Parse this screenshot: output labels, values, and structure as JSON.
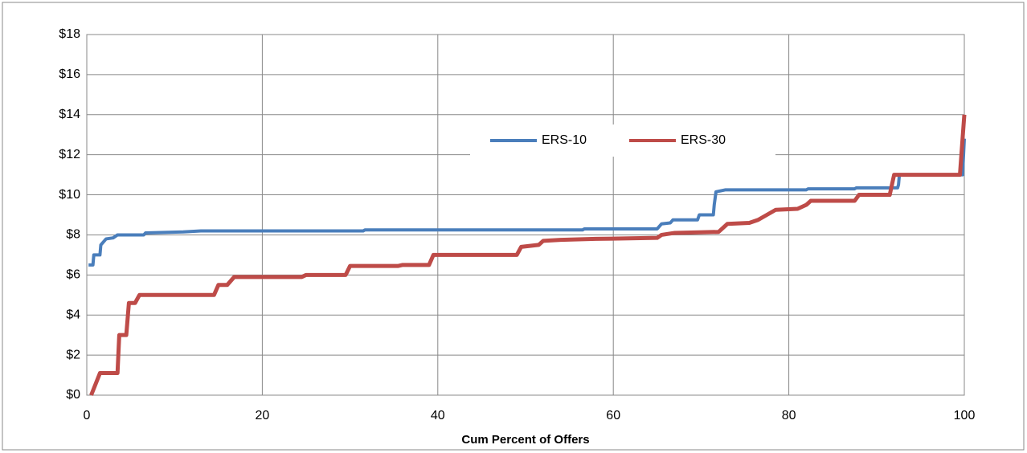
{
  "chart_data": {
    "type": "line",
    "xlabel": "Cum Percent of Offers",
    "xlim": [
      0,
      100
    ],
    "xticks": [
      0,
      20,
      40,
      60,
      80,
      100
    ],
    "ylim": [
      0,
      18
    ],
    "yticks": [
      {
        "value": 0,
        "label": "$0"
      },
      {
        "value": 2,
        "label": "$2"
      },
      {
        "value": 4,
        "label": "$4"
      },
      {
        "value": 6,
        "label": "$6"
      },
      {
        "value": 8,
        "label": "$8"
      },
      {
        "value": 10,
        "label": "$10"
      },
      {
        "value": 12,
        "label": "$12"
      },
      {
        "value": 14,
        "label": "$14"
      },
      {
        "value": 16,
        "label": "$16"
      },
      {
        "value": 18,
        "label": "$18"
      }
    ],
    "grid": true,
    "legend": "inside-top",
    "series": [
      {
        "name": "ERS-10",
        "color": "#4a7ebb",
        "x": [
          0.2,
          0.7,
          0.8,
          1.5,
          1.6,
          2.0,
          2.2,
          3.0,
          3.5,
          6.5,
          6.7,
          11,
          13,
          31.5,
          31.7,
          56.5,
          56.7,
          65,
          65.5,
          66.5,
          66.8,
          69.6,
          69.8,
          71.4,
          71.5,
          71.7,
          72.8,
          82,
          82.2,
          87.5,
          87.7,
          92.4,
          92.5,
          92.6,
          99.8,
          100
        ],
        "values": [
          6.5,
          6.5,
          7.0,
          7.0,
          7.5,
          7.7,
          7.8,
          7.85,
          8.0,
          8.0,
          8.1,
          8.15,
          8.2,
          8.2,
          8.25,
          8.25,
          8.3,
          8.3,
          8.55,
          8.6,
          8.75,
          8.75,
          9.0,
          9.0,
          9.5,
          10.15,
          10.25,
          10.25,
          10.3,
          10.3,
          10.35,
          10.35,
          10.5,
          11.0,
          11.0,
          12.8
        ]
      },
      {
        "name": "ERS-30",
        "color": "#be4b48",
        "x": [
          0.5,
          1.5,
          3.5,
          3.7,
          4.5,
          4.8,
          5.5,
          6.0,
          14.5,
          15,
          16,
          16.8,
          24.5,
          25,
          29.5,
          30,
          35.5,
          36,
          39,
          39.5,
          49,
          49.5,
          51.5,
          52,
          54,
          58,
          65,
          65.5,
          67,
          72,
          73,
          75.5,
          76.5,
          77.5,
          78.5,
          81,
          82,
          82.5,
          87.5,
          88,
          91.5,
          92,
          99.5,
          100
        ],
        "values": [
          0,
          1.1,
          1.1,
          3.0,
          3.0,
          4.6,
          4.6,
          5.0,
          5.0,
          5.5,
          5.5,
          5.9,
          5.9,
          6.0,
          6.0,
          6.45,
          6.45,
          6.5,
          6.5,
          7.0,
          7.0,
          7.4,
          7.5,
          7.7,
          7.75,
          7.8,
          7.85,
          8.0,
          8.1,
          8.15,
          8.55,
          8.6,
          8.75,
          9.0,
          9.25,
          9.3,
          9.5,
          9.7,
          9.7,
          10.0,
          10.0,
          11.0,
          11.0,
          14.0
        ]
      }
    ]
  }
}
